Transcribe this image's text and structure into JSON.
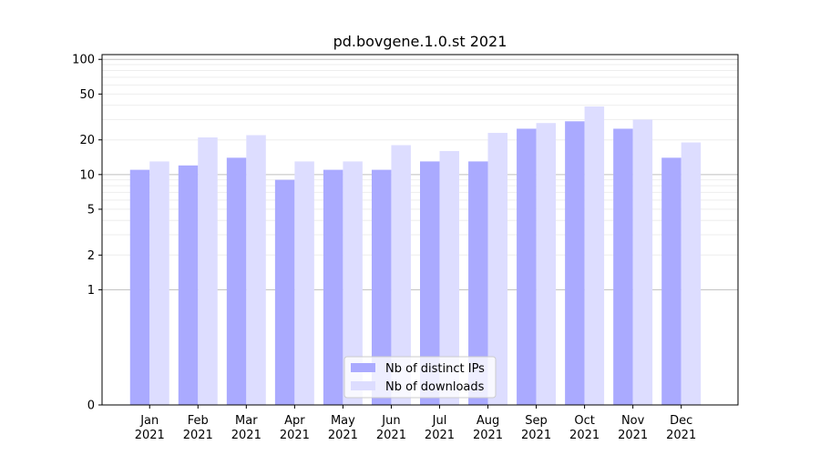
{
  "chart_data": {
    "type": "bar",
    "title": "pd.bovgene.1.0.st 2021",
    "xlabel": "",
    "ylabel": "",
    "yscale": "symlog",
    "ylim": [
      0,
      110
    ],
    "yticks": [
      0,
      1,
      2,
      5,
      10,
      20,
      50,
      100
    ],
    "grid": true,
    "legend_position": "bottom-center",
    "categories": [
      "Jan\n2021",
      "Feb\n2021",
      "Mar\n2021",
      "Apr\n2021",
      "May\n2021",
      "Jun\n2021",
      "Jul\n2021",
      "Aug\n2021",
      "Sep\n2021",
      "Oct\n2021",
      "Nov\n2021",
      "Dec\n2021"
    ],
    "series": [
      {
        "name": "Nb of distinct IPs",
        "color": "#aaaaff",
        "values": [
          11,
          12,
          14,
          9,
          11,
          11,
          13,
          13,
          25,
          29,
          25,
          14
        ]
      },
      {
        "name": "Nb of downloads",
        "color": "#ddddff",
        "values": [
          13,
          21,
          22,
          13,
          13,
          18,
          16,
          23,
          28,
          39,
          30,
          19
        ]
      }
    ]
  }
}
